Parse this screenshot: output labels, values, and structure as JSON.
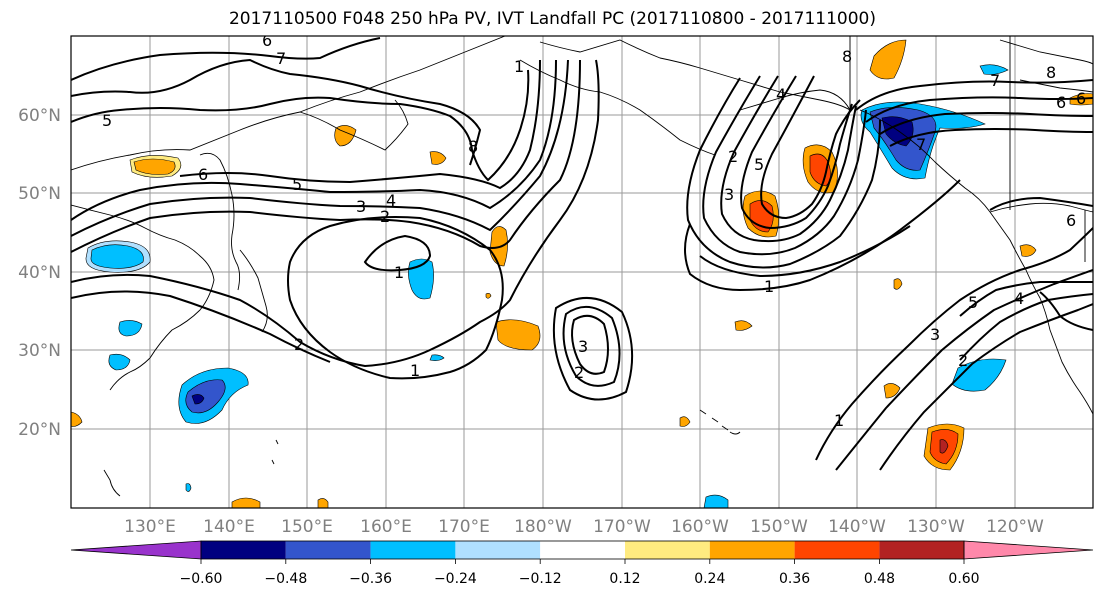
{
  "title": "2017110500 F048 250 hPa PV, IVT Landfall PC (2017110800 - 2017111000)",
  "lon_labels": [
    "130°E",
    "140°E",
    "150°E",
    "160°E",
    "170°E",
    "180°W",
    "170°W",
    "160°W",
    "150°W",
    "140°W",
    "130°W",
    "120°W"
  ],
  "lat_labels": [
    "60°N",
    "50°N",
    "40°N",
    "30°N",
    "20°N"
  ],
  "colorbar": {
    "ticks": [
      "−0.60",
      "−0.48",
      "−0.36",
      "−0.24",
      "−0.12",
      "0.12",
      "0.24",
      "0.36",
      "0.48",
      "0.60"
    ],
    "colors": [
      "#9933cc",
      "#000080",
      "#3355cc",
      "#00bfff",
      "#b0e0ff",
      "#ffffff",
      "#ffeb80",
      "#ffa500",
      "#ff4500",
      "#b22222",
      "#ff88aa"
    ]
  },
  "contour_labels": [
    "6",
    "7",
    "5",
    "6",
    "5",
    "4",
    "3",
    "2",
    "8",
    "1",
    "2",
    "1",
    "3",
    "1",
    "8",
    "7",
    "6",
    "5",
    "4",
    "3",
    "2",
    "1",
    "8",
    "7",
    "6",
    "2",
    "3",
    "4",
    "5",
    "6",
    "1",
    "2"
  ]
}
